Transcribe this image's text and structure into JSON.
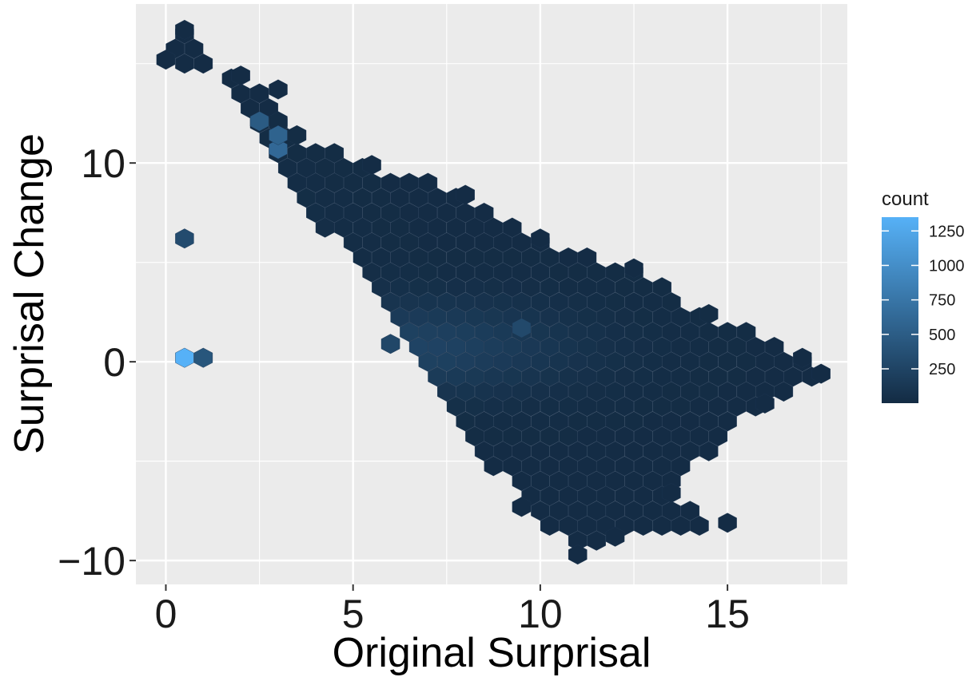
{
  "chart_data": {
    "type": "heatmap",
    "subtype": "hexbin",
    "title": "",
    "xlabel": "Original Surprisal",
    "ylabel": "Surprisal Change",
    "xlim": [
      -0.8,
      18.2
    ],
    "ylim": [
      -11.2,
      18.0
    ],
    "x_ticks": [
      0,
      5,
      10,
      15
    ],
    "x_tick_labels": [
      "0",
      "5",
      "10",
      "15"
    ],
    "y_ticks": [
      -10,
      0,
      10
    ],
    "y_tick_labels": [
      "−10",
      "0",
      "10"
    ],
    "grid": true,
    "background": "#EBEBEB",
    "legend": {
      "title": "count",
      "placement": "right",
      "min": 1,
      "max": 1350,
      "ticks": [
        250,
        500,
        750,
        1000,
        1250
      ],
      "tick_labels": [
        "250",
        "500",
        "750",
        "1000",
        "1250"
      ],
      "low_color": "#132B43",
      "high_color": "#56B1F7"
    },
    "hex": {
      "x_origin": 0,
      "x_spacing": 0.5,
      "y_origin": 0,
      "y_spacing": 0.75,
      "extremes": [
        {
          "x": 0.5,
          "y": 16.7
        },
        {
          "x": 0,
          "y": 15.2
        },
        {
          "x": 2.0,
          "y": 14.4
        },
        {
          "x": 3.0,
          "y": 13.7
        },
        {
          "x": 3.0,
          "y": 12.1
        },
        {
          "x": 3.5,
          "y": 11.4
        },
        {
          "x": 5.5,
          "y": 9.9
        },
        {
          "x": 8.0,
          "y": 8.4
        },
        {
          "x": 10.0,
          "y": 6.2
        },
        {
          "x": 12.5,
          "y": 4.7
        },
        {
          "x": 14.5,
          "y": 2.4
        },
        {
          "x": 17.0,
          "y": 0.2
        },
        {
          "x": 17.5,
          "y": -0.6
        },
        {
          "x": 16.0,
          "y": -2.1
        },
        {
          "x": 13.5,
          "y": -6.6
        },
        {
          "x": 15.0,
          "y": -8.1
        },
        {
          "x": 12.0,
          "y": -8.8
        },
        {
          "x": 11.0,
          "y": -9.7
        },
        {
          "x": 9.5,
          "y": -7.3
        }
      ],
      "hot_spots": [
        {
          "x": 0.5,
          "y": 0.2,
          "count": 1350
        },
        {
          "x": 3.0,
          "y": 10.7,
          "count": 620
        },
        {
          "x": 3.0,
          "y": 11.4,
          "count": 560
        },
        {
          "x": 2.5,
          "y": 12.1,
          "count": 480
        },
        {
          "x": 1.0,
          "y": 0.2,
          "count": 430
        },
        {
          "x": 0.5,
          "y": 6.2,
          "count": 320
        },
        {
          "x": 9.5,
          "y": 1.7,
          "count": 300
        },
        {
          "x": 6.0,
          "y": 0.9,
          "count": 280
        }
      ]
    }
  }
}
